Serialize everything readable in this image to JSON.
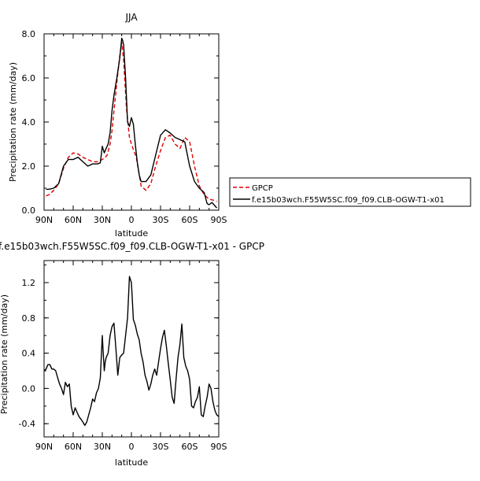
{
  "chart_data": [
    {
      "type": "line",
      "title": "JJA",
      "xlabel": "latitude",
      "ylabel": "Precipitation rate (mm/day)",
      "xlim": [
        90,
        -90
      ],
      "ylim": [
        0,
        8
      ],
      "x_ticks": [
        "90N",
        "60N",
        "30N",
        "0",
        "30S",
        "60S",
        "90S"
      ],
      "y_ticks": [
        "0.0",
        "2.0",
        "4.0",
        "6.0",
        "8.0"
      ],
      "legend_position": "right",
      "series": [
        {
          "name": "GPCP",
          "color": "#e00000",
          "dash": "dashed",
          "x": [
            88,
            85,
            80,
            75,
            70,
            65,
            60,
            55,
            50,
            45,
            40,
            35,
            30,
            27,
            25,
            22,
            20,
            18,
            15,
            12,
            10,
            8,
            5,
            2,
            0,
            -5,
            -10,
            -15,
            -20,
            -25,
            -30,
            -35,
            -40,
            -45,
            -50,
            -55,
            -60,
            -65,
            -70,
            -75,
            -80,
            -85,
            -88
          ],
          "y": [
            0.65,
            0.7,
            0.9,
            1.2,
            1.9,
            2.4,
            2.6,
            2.55,
            2.4,
            2.3,
            2.2,
            2.2,
            2.3,
            2.4,
            2.5,
            3.0,
            3.6,
            4.5,
            5.8,
            7.0,
            7.6,
            6.8,
            4.6,
            3.3,
            3.0,
            2.4,
            1.1,
            0.9,
            1.2,
            2.0,
            2.7,
            3.3,
            3.4,
            3.0,
            2.8,
            3.3,
            3.1,
            2.0,
            1.1,
            0.7,
            0.5,
            0.45,
            0.4
          ]
        },
        {
          "name": "f.e15b03wch.F55W5SC.f09_f09.CLB-OGW-T1-x01",
          "color": "#000000",
          "dash": "solid",
          "x": [
            88,
            85,
            80,
            75,
            70,
            65,
            60,
            55,
            50,
            45,
            40,
            35,
            32,
            30,
            28,
            26,
            24,
            22,
            20,
            18,
            15,
            12,
            10,
            9,
            8,
            6,
            4,
            2,
            0,
            -2,
            -4,
            -6,
            -8,
            -10,
            -15,
            -20,
            -25,
            -30,
            -35,
            -40,
            -45,
            -50,
            -55,
            -60,
            -65,
            -70,
            -75,
            -78,
            -80,
            -83,
            -86,
            -88
          ],
          "y": [
            0.95,
            0.95,
            1.0,
            1.2,
            2.0,
            2.3,
            2.3,
            2.4,
            2.2,
            2.0,
            2.1,
            2.1,
            2.15,
            2.9,
            2.6,
            2.8,
            3.0,
            3.5,
            4.5,
            5.2,
            6.0,
            6.9,
            7.8,
            7.7,
            7.5,
            6.0,
            4.0,
            3.8,
            4.2,
            3.9,
            3.0,
            2.2,
            1.6,
            1.3,
            1.3,
            1.6,
            2.5,
            3.4,
            3.65,
            3.5,
            3.3,
            3.2,
            3.1,
            2.0,
            1.3,
            1.0,
            0.8,
            0.3,
            0.25,
            0.35,
            0.2,
            0.1
          ]
        }
      ]
    },
    {
      "type": "line",
      "title": "f.e15b03wch.F55W5SC.f09_f09.CLB-OGW-T1-x01 - GPCP",
      "xlabel": "latitude",
      "ylabel": "Precipitation rate (mm/day)",
      "xlim": [
        90,
        -90
      ],
      "ylim": [
        -0.55,
        1.45
      ],
      "x_ticks": [
        "90N",
        "60N",
        "30N",
        "0",
        "30S",
        "60S",
        "90S"
      ],
      "y_ticks": [
        "-0.4",
        "0.0",
        "0.4",
        "0.8",
        "1.2"
      ],
      "series": [
        {
          "color": "#000000",
          "dash": "solid",
          "x": [
            90,
            88,
            86,
            84,
            82,
            80,
            78,
            76,
            74,
            72,
            70,
            68,
            66,
            64,
            62,
            60,
            58,
            56,
            54,
            52,
            50,
            48,
            46,
            44,
            42,
            40,
            38,
            36,
            34,
            32,
            30,
            29,
            28,
            27,
            26,
            24,
            22,
            20,
            18,
            16,
            14,
            12,
            10,
            8,
            6,
            4,
            2,
            0,
            -2,
            -4,
            -6,
            -8,
            -10,
            -12,
            -14,
            -16,
            -18,
            -20,
            -22,
            -24,
            -26,
            -28,
            -30,
            -32,
            -34,
            -36,
            -38,
            -40,
            -42,
            -44,
            -46,
            -48,
            -50,
            -52,
            -54,
            -56,
            -58,
            -60,
            -62,
            -64,
            -66,
            -68,
            -70,
            -72,
            -74,
            -76,
            -78,
            -80,
            -82,
            -84,
            -86,
            -88,
            -90
          ],
          "y": [
            0.2,
            0.22,
            0.27,
            0.27,
            0.22,
            0.22,
            0.2,
            0.12,
            0.05,
            0.0,
            -0.07,
            0.07,
            0.02,
            0.05,
            -0.2,
            -0.3,
            -0.22,
            -0.27,
            -0.32,
            -0.35,
            -0.38,
            -0.42,
            -0.38,
            -0.3,
            -0.22,
            -0.12,
            -0.15,
            -0.05,
            0.0,
            0.12,
            0.6,
            0.4,
            0.2,
            0.3,
            0.35,
            0.4,
            0.6,
            0.7,
            0.74,
            0.45,
            0.15,
            0.35,
            0.38,
            0.4,
            0.6,
            0.8,
            1.27,
            1.2,
            0.78,
            0.72,
            0.62,
            0.55,
            0.4,
            0.3,
            0.15,
            0.08,
            -0.02,
            0.05,
            0.15,
            0.22,
            0.15,
            0.3,
            0.45,
            0.58,
            0.66,
            0.48,
            0.28,
            0.1,
            -0.1,
            -0.17,
            0.1,
            0.35,
            0.5,
            0.73,
            0.35,
            0.25,
            0.2,
            0.1,
            -0.2,
            -0.22,
            -0.15,
            -0.1,
            0.02,
            -0.3,
            -0.32,
            -0.2,
            -0.1,
            0.05,
            0.0,
            -0.15,
            -0.25,
            -0.3,
            -0.32
          ]
        }
      ]
    }
  ]
}
